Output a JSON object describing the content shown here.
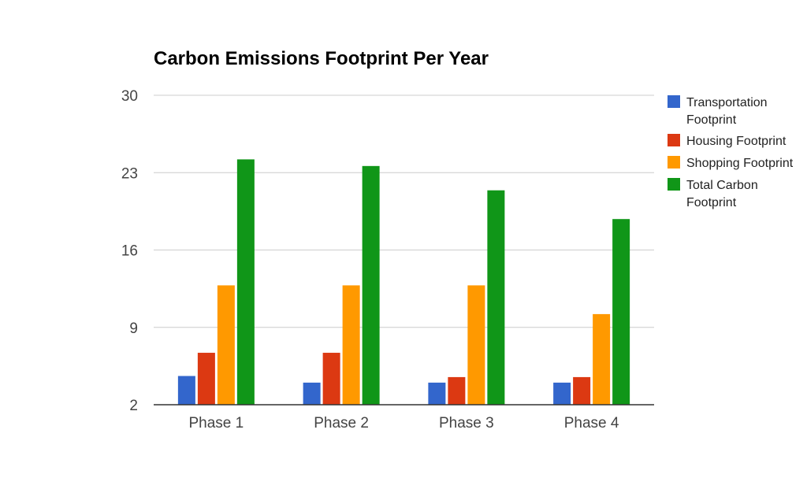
{
  "chart_data": {
    "type": "bar",
    "title": "Carbon Emissions Footprint Per Year",
    "xlabel": "",
    "ylabel": "",
    "ylim": [
      2,
      30
    ],
    "yticks": [
      2,
      9,
      16,
      23,
      30
    ],
    "grid": true,
    "legend_position": "right",
    "categories": [
      "Phase 1",
      "Phase 2",
      "Phase 3",
      "Phase 4"
    ],
    "series": [
      {
        "name": "Transportation Footprint",
        "color": "#3366cc",
        "values": [
          4.6,
          4.0,
          4.0,
          4.0
        ]
      },
      {
        "name": "Housing Footprint",
        "color": "#dc3912",
        "values": [
          6.7,
          6.7,
          4.5,
          4.5
        ]
      },
      {
        "name": "Shopping Footprint",
        "color": "#ff9900",
        "values": [
          12.8,
          12.8,
          12.8,
          10.2
        ]
      },
      {
        "name": "Total Carbon Footprint",
        "color": "#109618",
        "values": [
          24.2,
          23.6,
          21.4,
          18.8
        ]
      }
    ]
  }
}
